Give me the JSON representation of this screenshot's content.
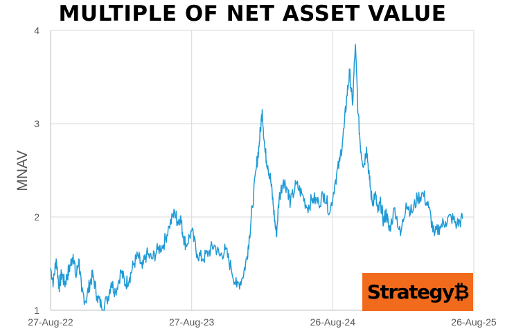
{
  "chart_data": {
    "type": "line",
    "title": "MULTIPLE OF NET ASSET VALUE",
    "xlabel": "",
    "ylabel": "MNAV",
    "x_tick_labels": [
      "27-Aug-22",
      "27-Aug-23",
      "26-Aug-24",
      "26-Aug-25"
    ],
    "x_range": [
      0,
      3
    ],
    "y_ticks": [
      1,
      2,
      3,
      4
    ],
    "ylim": [
      1,
      4
    ],
    "grid": true,
    "series": [
      {
        "name": "MNAV",
        "color": "#1f9ad6",
        "x": [
          0.0,
          0.02,
          0.04,
          0.06,
          0.08,
          0.1,
          0.12,
          0.14,
          0.16,
          0.18,
          0.2,
          0.22,
          0.25,
          0.28,
          0.3,
          0.33,
          0.36,
          0.4,
          0.43,
          0.46,
          0.5,
          0.53,
          0.56,
          0.59,
          0.62,
          0.65,
          0.68,
          0.72,
          0.76,
          0.8,
          0.84,
          0.88,
          0.9,
          0.92,
          0.94,
          0.96,
          1.0,
          1.04,
          1.08,
          1.12,
          1.16,
          1.2,
          1.24,
          1.28,
          1.32,
          1.36,
          1.39,
          1.41,
          1.43,
          1.46,
          1.48,
          1.5,
          1.52,
          1.54,
          1.56,
          1.58,
          1.6,
          1.62,
          1.65,
          1.68,
          1.7,
          1.74,
          1.78,
          1.82,
          1.86,
          1.9,
          1.94,
          1.98,
          2.02,
          2.05,
          2.08,
          2.1,
          2.12,
          2.14,
          2.16,
          2.18,
          2.2,
          2.22,
          2.24,
          2.26,
          2.28,
          2.3,
          2.32,
          2.34,
          2.36,
          2.38,
          2.4,
          2.44,
          2.48,
          2.52,
          2.56,
          2.6,
          2.64,
          2.68,
          2.72,
          2.76,
          2.8,
          2.84,
          2.88,
          2.92
        ],
        "values": [
          1.45,
          1.3,
          1.55,
          1.25,
          1.4,
          1.28,
          1.38,
          1.48,
          1.6,
          1.35,
          1.55,
          1.2,
          1.1,
          1.3,
          1.38,
          1.15,
          1.05,
          1.1,
          1.3,
          1.2,
          1.42,
          1.28,
          1.35,
          1.5,
          1.58,
          1.45,
          1.6,
          1.55,
          1.65,
          1.7,
          1.9,
          2.05,
          1.95,
          2.0,
          1.8,
          1.7,
          1.85,
          1.6,
          1.55,
          1.62,
          1.7,
          1.58,
          1.65,
          1.45,
          1.25,
          1.35,
          1.55,
          1.8,
          2.1,
          2.55,
          2.8,
          3.15,
          2.7,
          2.55,
          2.4,
          2.1,
          1.8,
          2.2,
          2.4,
          2.3,
          2.15,
          2.35,
          2.25,
          2.1,
          2.2,
          2.15,
          2.25,
          2.05,
          2.4,
          2.6,
          2.95,
          3.3,
          3.55,
          3.2,
          3.85,
          3.1,
          2.7,
          2.55,
          2.75,
          2.4,
          2.15,
          2.25,
          2.05,
          2.15,
          1.95,
          2.05,
          1.85,
          2.1,
          1.8,
          2.15,
          2.05,
          2.2,
          2.25,
          2.1,
          1.8,
          1.9,
          1.95,
          2.0,
          1.92,
          1.98
        ]
      }
    ]
  },
  "logo": {
    "text": "Strategy",
    "symbol": "₿",
    "bg_color": "#f26b1d"
  }
}
